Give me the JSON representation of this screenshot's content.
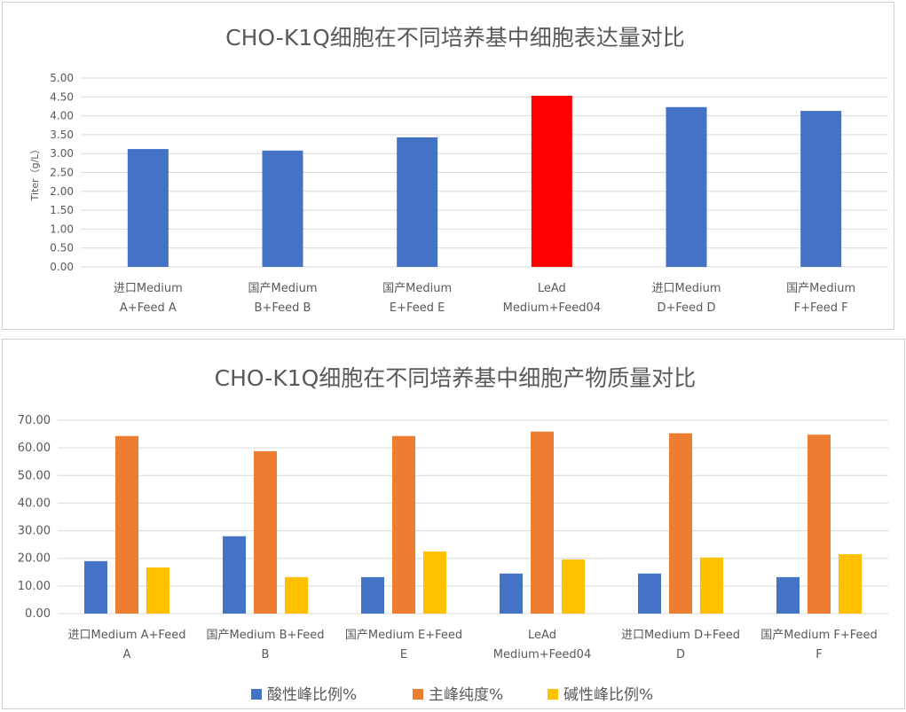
{
  "chart_data": [
    {
      "type": "bar",
      "title": "CHO-K1Q细胞在不同培养基中细胞表达量对比",
      "xlabel": "",
      "ylabel": "Titer（g/L）",
      "ylim": [
        0,
        5
      ],
      "yticks": [
        "0.00",
        "0.50",
        "1.00",
        "1.50",
        "2.00",
        "2.50",
        "3.00",
        "3.50",
        "4.00",
        "4.50",
        "5.00"
      ],
      "categories": [
        [
          "进口Medium",
          "A+Feed  A"
        ],
        [
          "国产Medium",
          "B+Feed  B"
        ],
        [
          "国产Medium",
          "E+Feed  E"
        ],
        [
          "LeAd",
          "Medium+Feed04"
        ],
        [
          "进口Medium",
          "D+Feed  D"
        ],
        [
          "国产Medium",
          "F+Feed  F"
        ]
      ],
      "values": [
        3.12,
        3.08,
        3.43,
        4.53,
        4.23,
        4.13
      ],
      "colors": [
        "#4472C4",
        "#4472C4",
        "#4472C4",
        "#FF0000",
        "#4472C4",
        "#4472C4"
      ],
      "grid": true
    },
    {
      "type": "bar",
      "title": "CHO-K1Q细胞在不同培养基中细胞产物质量对比",
      "xlabel": "",
      "ylabel": "",
      "ylim": [
        0,
        70
      ],
      "yticks": [
        "0.00",
        "10.00",
        "20.00",
        "30.00",
        "40.00",
        "50.00",
        "60.00",
        "70.00"
      ],
      "categories": [
        [
          "进口Medium  A+Feed",
          "A"
        ],
        [
          "国产Medium  B+Feed",
          "B"
        ],
        [
          "国产Medium  E+Feed",
          "E"
        ],
        [
          "LeAd",
          "Medium+Feed04"
        ],
        [
          "进口Medium  D+Feed",
          "D"
        ],
        [
          "国产Medium  F+Feed",
          "F"
        ]
      ],
      "series": [
        {
          "name": "酸性峰比例%",
          "color": "#4472C4",
          "values": [
            19.0,
            28.0,
            13.2,
            14.5,
            14.5,
            13.2
          ]
        },
        {
          "name": "主峰纯度%",
          "color": "#ED7D31",
          "values": [
            64.3,
            58.8,
            64.3,
            65.9,
            65.3,
            64.8
          ]
        },
        {
          "name": "碱性峰比例%",
          "color": "#FFC000",
          "values": [
            16.7,
            13.2,
            22.5,
            19.6,
            20.3,
            21.5
          ]
        }
      ],
      "legend": "bottom",
      "grid": true
    }
  ]
}
